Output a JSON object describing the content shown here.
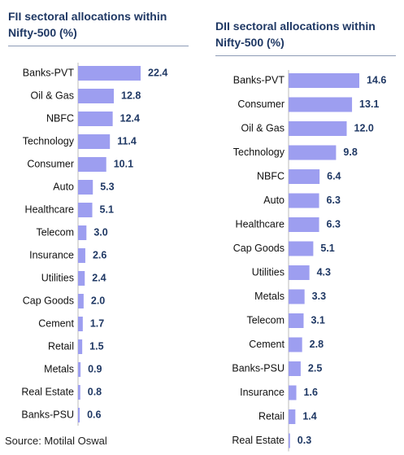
{
  "chart_data": [
    {
      "type": "bar",
      "orientation": "horizontal",
      "title": "FII sectoral allocations within Nifty-500 (%)",
      "categories": [
        "Banks-PVT",
        "Oil & Gas",
        "NBFC",
        "Technology",
        "Consumer",
        "Auto",
        "Healthcare",
        "Telecom",
        "Insurance",
        "Utilities",
        "Cap Goods",
        "Cement",
        "Retail",
        "Metals",
        "Real Estate",
        "Banks-PSU"
      ],
      "values": [
        22.4,
        12.8,
        12.4,
        11.4,
        10.1,
        5.3,
        5.1,
        3.0,
        2.6,
        2.4,
        2.0,
        1.7,
        1.5,
        0.9,
        0.8,
        0.6
      ],
      "value_labels": [
        "22.4",
        "12.8",
        "12.4",
        "11.4",
        "10.1",
        "5.3",
        "5.1",
        "3.0",
        "2.6",
        "2.4",
        "2.0",
        "1.7",
        "1.5",
        "0.9",
        "0.8",
        "0.6"
      ],
      "color": "#9d9ef0"
    },
    {
      "type": "bar",
      "orientation": "horizontal",
      "title": "DII sectoral allocations within Nifty-500 (%)",
      "categories": [
        "Banks-PVT",
        "Consumer",
        "Oil & Gas",
        "Technology",
        "NBFC",
        "Auto",
        "Healthcare",
        "Cap Goods",
        "Utilities",
        "Metals",
        "Telecom",
        "Cement",
        "Banks-PSU",
        "Insurance",
        "Retail",
        "Real Estate"
      ],
      "values": [
        14.6,
        13.1,
        12.0,
        9.8,
        6.4,
        6.3,
        6.3,
        5.1,
        4.3,
        3.3,
        3.1,
        2.8,
        2.5,
        1.6,
        1.4,
        0.3
      ],
      "value_labels": [
        "14.6",
        "13.1",
        "12.0",
        "9.8",
        "6.4",
        "6.3",
        "6.3",
        "5.1",
        "4.3",
        "3.3",
        "3.1",
        "2.8",
        "2.5",
        "1.6",
        "1.4",
        "0.3"
      ],
      "color": "#9d9ef0"
    }
  ],
  "source": "Source: Motilal Oswal"
}
